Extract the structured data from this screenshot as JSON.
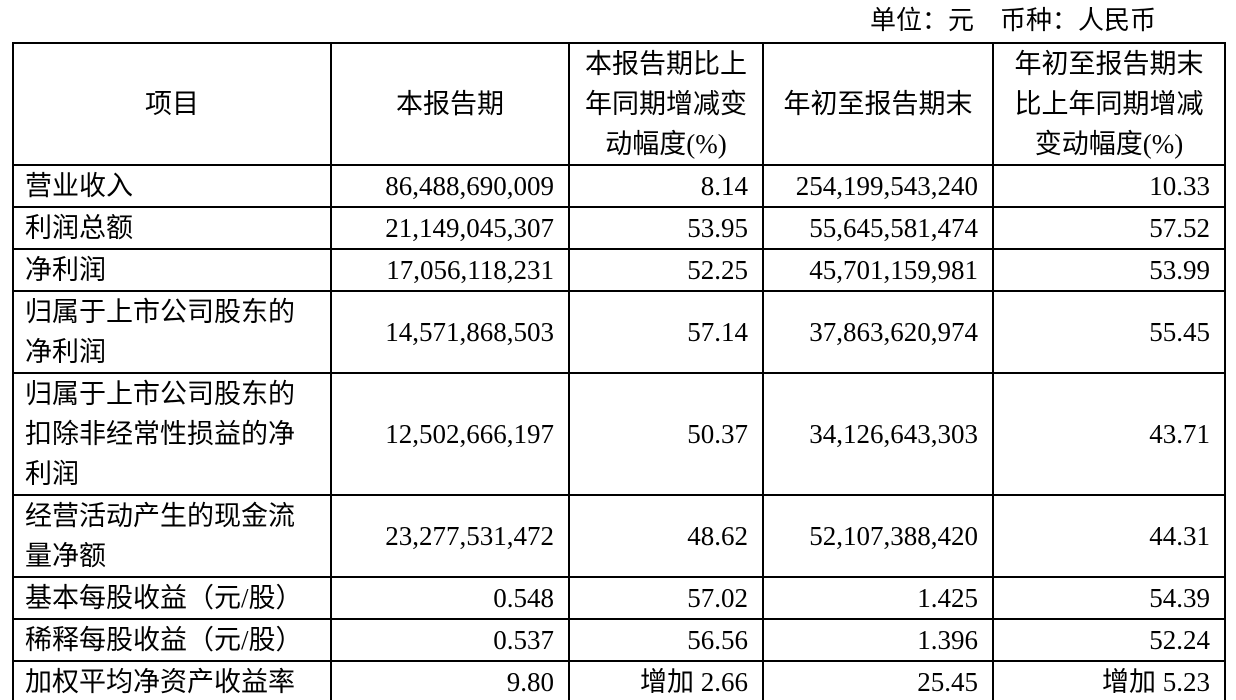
{
  "caption": {
    "text": "单位：元　币种：人民币"
  },
  "table": {
    "headers": [
      "项目",
      "本报告期",
      "本报告期比上\n年同期增减变\n动幅度(%)",
      "年初至报告期末",
      "年初至报告期末\n比上年同期增减\n变动幅度(%)"
    ],
    "rows": [
      {
        "item": "营业收入",
        "current_period": "86,488,690,009",
        "current_change_pct": "8.14",
        "ytd": "254,199,543,240",
        "ytd_change_pct": "10.33"
      },
      {
        "item": "利润总额",
        "current_period": "21,149,045,307",
        "current_change_pct": "53.95",
        "ytd": "55,645,581,474",
        "ytd_change_pct": "57.52"
      },
      {
        "item": "净利润",
        "current_period": "17,056,118,231",
        "current_change_pct": "52.25",
        "ytd": "45,701,159,981",
        "ytd_change_pct": "53.99"
      },
      {
        "item": "归属于上市公司股东的\n净利润",
        "current_period": "14,571,868,503",
        "current_change_pct": "57.14",
        "ytd": "37,863,620,974",
        "ytd_change_pct": "55.45"
      },
      {
        "item": "归属于上市公司股东的\n扣除非经常性损益的净\n利润",
        "current_period": "12,502,666,197",
        "current_change_pct": "50.37",
        "ytd": "34,126,643,303",
        "ytd_change_pct": "43.71"
      },
      {
        "item": "经营活动产生的现金流\n量净额",
        "current_period": "23,277,531,472",
        "current_change_pct": "48.62",
        "ytd": "52,107,388,420",
        "ytd_change_pct": "44.31"
      },
      {
        "item": "基本每股收益（元/股）",
        "current_period": "0.548",
        "current_change_pct": "57.02",
        "ytd": "1.425",
        "ytd_change_pct": "54.39"
      },
      {
        "item": "稀释每股收益（元/股）",
        "current_period": "0.537",
        "current_change_pct": "56.56",
        "ytd": "1.396",
        "ytd_change_pct": "52.24"
      },
      {
        "item": "加权平均净资产收益率",
        "current_period": "9.80",
        "current_change_pct": "增加 2.66",
        "ytd": "25.45",
        "ytd_change_pct": "增加 5.23"
      }
    ]
  }
}
